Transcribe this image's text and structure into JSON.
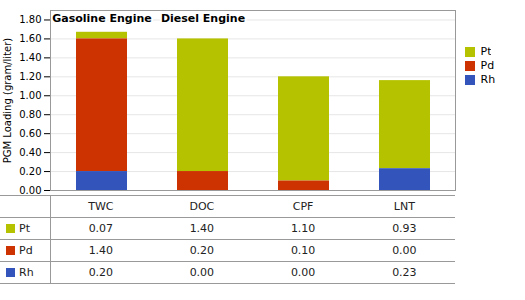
{
  "chart_data": {
    "type": "bar",
    "stacked": true,
    "categories": [
      "TWC",
      "DOC",
      "CPF",
      "LNT"
    ],
    "series": [
      {
        "name": "Pt",
        "color": "#b5c200",
        "values": [
          0.07,
          1.4,
          1.1,
          0.93
        ],
        "value_labels": [
          "0.07",
          "1.40",
          "1.10",
          "0.93"
        ]
      },
      {
        "name": "Pd",
        "color": "#cc3300",
        "values": [
          1.4,
          0.2,
          0.1,
          0.0
        ],
        "value_labels": [
          "1.40",
          "0.20",
          "0.10",
          "0.00"
        ]
      },
      {
        "name": "Rh",
        "color": "#3355bb",
        "values": [
          0.2,
          0.0,
          0.0,
          0.23
        ],
        "value_labels": [
          "0.20",
          "0.00",
          "0.00",
          "0.23"
        ]
      }
    ],
    "ylabel": "PGM Loading (gram/liter)",
    "ylim": [
      0.0,
      1.9
    ],
    "yticks": [
      {
        "value": 0.0,
        "label": "0.00"
      },
      {
        "value": 0.2,
        "label": "0.20"
      },
      {
        "value": 0.4,
        "label": "0.40"
      },
      {
        "value": 0.6,
        "label": "0.60"
      },
      {
        "value": 0.8,
        "label": "0.80"
      },
      {
        "value": 1.0,
        "label": "1.00"
      },
      {
        "value": 1.2,
        "label": "1.20"
      },
      {
        "value": 1.4,
        "label": "1.40"
      },
      {
        "value": 1.6,
        "label": "1.60"
      },
      {
        "value": 1.8,
        "label": "1.80"
      }
    ],
    "grid": true,
    "legend": "right",
    "tick_labels": "y",
    "annotations": [
      "Gasoline Engine",
      "Diesel Engine"
    ]
  }
}
